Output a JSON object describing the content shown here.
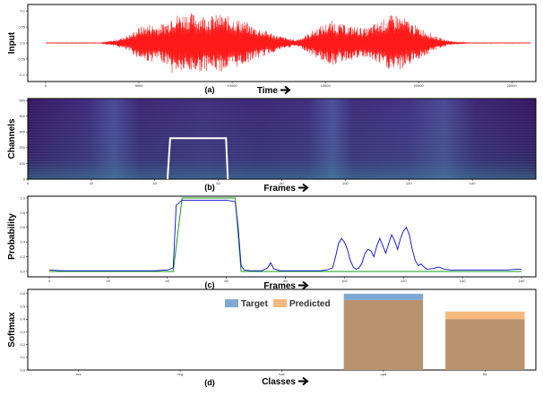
{
  "colors": {
    "waveform": "#ff1a1a",
    "spectro_bg": "#3b1a6e",
    "window_box": "#ffffff",
    "prob_blue": "#0a0ad0",
    "prob_green": "#1a9a1a",
    "target_bar": "#7fa9d4",
    "predicted_bar": "#f7b97e",
    "overlap_bar": "#b9926e"
  },
  "chart_data": [
    {
      "panel": "a",
      "type": "line",
      "caption": "(a)",
      "ylabel": "Input",
      "xlabel": "Time",
      "xlim": [
        0,
        26000
      ],
      "ylim": [
        -0.12,
        0.12
      ],
      "xticks": [
        0,
        5000,
        10000,
        15000,
        20000,
        25000
      ],
      "yticks": [
        -0.1,
        -0.05,
        0.0,
        0.05,
        0.1
      ],
      "ytick_labels": [
        "-0.1",
        "-0.05",
        "0.0",
        "0.05",
        "0.1"
      ],
      "envelope": {
        "t": [
          0,
          3000,
          3200,
          3600,
          4000,
          4600,
          5000,
          5600,
          6000,
          6600,
          6800,
          7000,
          7600,
          8200,
          8800,
          9400,
          10000,
          10600,
          11200,
          11800,
          12400,
          13000,
          13400,
          13800,
          14200,
          14600,
          15000,
          15400,
          15800,
          16200,
          16800,
          17200,
          17600,
          18000,
          18400,
          18800,
          19200,
          19600,
          20000,
          20400,
          20800,
          21200,
          21600,
          22000,
          22400,
          22800,
          23200,
          23600,
          24000,
          26000
        ],
        "amp": [
          0.001,
          0.001,
          0.004,
          0.008,
          0.015,
          0.03,
          0.05,
          0.06,
          0.055,
          0.07,
          0.1,
          0.09,
          0.095,
          0.09,
          0.085,
          0.09,
          0.08,
          0.07,
          0.05,
          0.04,
          0.025,
          0.015,
          0.01,
          0.02,
          0.035,
          0.05,
          0.06,
          0.07,
          0.06,
          0.055,
          0.05,
          0.045,
          0.06,
          0.07,
          0.085,
          0.09,
          0.08,
          0.065,
          0.05,
          0.04,
          0.025,
          0.015,
          0.008,
          0.004,
          0.002,
          0.001,
          0.001,
          0.001,
          0.001,
          0.001
        ]
      }
    },
    {
      "panel": "b",
      "type": "heatmap",
      "caption": "(b)",
      "ylabel": "Channels",
      "xlabel": "Frames",
      "xlim": [
        0,
        160
      ],
      "ylim": [
        0,
        512
      ],
      "xticks": [
        0,
        20,
        40,
        60,
        80,
        100,
        120,
        140
      ],
      "yticks": [
        0,
        100,
        200,
        300,
        400,
        500
      ],
      "window": {
        "x_start": 44,
        "x_end": 63,
        "y_top": 260
      }
    },
    {
      "panel": "c",
      "type": "line",
      "caption": "(c)",
      "ylabel": "Probability",
      "xlabel": "Frames",
      "xlim": [
        0,
        160
      ],
      "ylim": [
        0.0,
        1.0
      ],
      "xticks": [
        0,
        20,
        40,
        60,
        80,
        100,
        120,
        140,
        160
      ],
      "yticks": [
        0.0,
        0.2,
        0.4,
        0.6,
        0.8,
        1.0
      ],
      "ytick_labels": [
        "0.0",
        "0.2",
        "0.4",
        "0.6",
        "0.8",
        "1.0"
      ],
      "series": [
        {
          "color": "#1a9a1a",
          "x": [
            0,
            42,
            45,
            63,
            65,
            160
          ],
          "y": [
            0.0,
            0.0,
            1.0,
            1.0,
            0.0,
            0.0
          ]
        },
        {
          "color": "#0a0ad0",
          "x": [
            0,
            4,
            8,
            12,
            16,
            20,
            24,
            28,
            32,
            36,
            40,
            42,
            43,
            45,
            50,
            55,
            60,
            63,
            64,
            65,
            66,
            68,
            70,
            72,
            74,
            75,
            76,
            78,
            80,
            84,
            88,
            92,
            94,
            96,
            97,
            98,
            99,
            100,
            101,
            102,
            103,
            104,
            105,
            106,
            107,
            108,
            109,
            110,
            111,
            112,
            113,
            114,
            115,
            116,
            117,
            118,
            119,
            120,
            121,
            122,
            123,
            124,
            125,
            126,
            127,
            128,
            130,
            132,
            134,
            136,
            140,
            145,
            150,
            155,
            158,
            160
          ],
          "y": [
            0.02,
            0.01,
            0.01,
            0.01,
            0.01,
            0.01,
            0.01,
            0.01,
            0.01,
            0.01,
            0.02,
            0.05,
            0.9,
            0.97,
            0.97,
            0.97,
            0.97,
            0.95,
            0.6,
            0.08,
            0.02,
            0.01,
            0.01,
            0.01,
            0.05,
            0.12,
            0.04,
            0.01,
            0.01,
            0.01,
            0.01,
            0.01,
            0.02,
            0.05,
            0.2,
            0.38,
            0.45,
            0.4,
            0.3,
            0.15,
            0.06,
            0.03,
            0.05,
            0.12,
            0.25,
            0.3,
            0.28,
            0.2,
            0.35,
            0.45,
            0.35,
            0.25,
            0.38,
            0.5,
            0.42,
            0.3,
            0.45,
            0.55,
            0.6,
            0.5,
            0.3,
            0.15,
            0.08,
            0.1,
            0.06,
            0.03,
            0.04,
            0.06,
            0.03,
            0.02,
            0.02,
            0.02,
            0.02,
            0.02,
            0.03,
            0.03
          ]
        }
      ]
    },
    {
      "panel": "d",
      "type": "bar",
      "caption": "(d)",
      "ylabel": "Softmax",
      "xlabel": "Classes",
      "categories": [
        "res",
        "reg",
        "hac",
        "opd",
        "fla"
      ],
      "ylim": [
        0.0,
        0.62
      ],
      "yticks": [
        0.0,
        0.1,
        0.2,
        0.3,
        0.4,
        0.5,
        0.6
      ],
      "ytick_labels": [
        "0.0",
        "0.1",
        "0.2",
        "0.3",
        "0.4",
        "0.5",
        "0.6"
      ],
      "series": [
        {
          "name": "Target",
          "values": [
            0,
            0,
            0,
            0.6,
            0.4
          ]
        },
        {
          "name": "Predicted",
          "values": [
            0,
            0,
            0,
            0.55,
            0.46
          ]
        }
      ],
      "legend": "top-center"
    }
  ]
}
